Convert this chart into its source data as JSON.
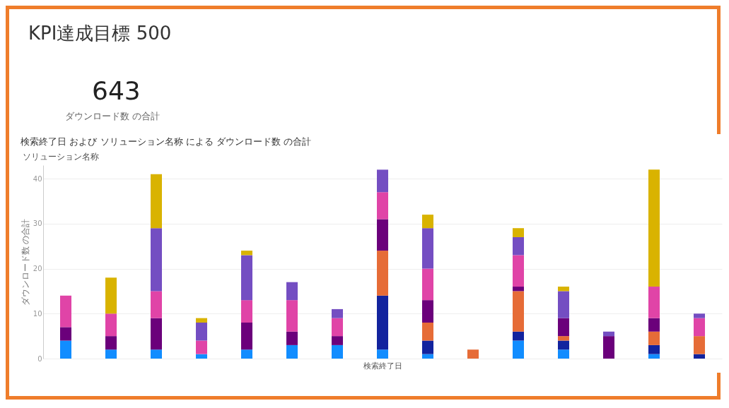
{
  "chart_data": [
    {
      "type": "other",
      "title": "KPI達成目標 500",
      "values": [
        643
      ],
      "data_labels": true,
      "annotations": [
        "ダウンロード数 の合計"
      ]
    },
    {
      "type": "bar",
      "title": "検索終了日 および ソリューション名称 による ダウンロード数 の合計",
      "annotations": [
        "ソリューション名称"
      ],
      "xlabel": "検索終了日",
      "ylabel": "ダウンロード数 の合計",
      "stacked": true,
      "grid": "y",
      "ylim": [
        0,
        43
      ],
      "yticks": [
        0,
        10,
        20,
        30,
        40
      ],
      "categories": [
        null,
        null,
        null,
        null,
        null,
        null,
        null,
        null,
        null,
        null,
        null,
        null,
        null,
        null,
        null
      ],
      "series": [
        {
          "color": "#118dff",
          "values": [
            4,
            2,
            2,
            1,
            2,
            3,
            3,
            2,
            1,
            0,
            4,
            2,
            0,
            1,
            0
          ]
        },
        {
          "color": "#12239e",
          "values": [
            0,
            0,
            0,
            0,
            0,
            0,
            0,
            12,
            3,
            0,
            2,
            2,
            0,
            2,
            1
          ]
        },
        {
          "color": "#e66c37",
          "values": [
            0,
            0,
            0,
            0,
            0,
            0,
            0,
            10,
            4,
            2,
            9,
            1,
            0,
            3,
            4
          ]
        },
        {
          "color": "#6b007b",
          "values": [
            3,
            3,
            7,
            0,
            6,
            3,
            2,
            7,
            5,
            0,
            1,
            4,
            5,
            3,
            0
          ]
        },
        {
          "color": "#e044a7",
          "values": [
            7,
            5,
            6,
            3,
            5,
            7,
            4,
            6,
            7,
            0,
            7,
            0,
            0,
            7,
            4
          ]
        },
        {
          "color": "#744ec2",
          "values": [
            0,
            0,
            14,
            4,
            10,
            4,
            2,
            5,
            9,
            0,
            4,
            6,
            1,
            0,
            1
          ]
        },
        {
          "color": "#d9b300",
          "values": [
            0,
            8,
            12,
            1,
            1,
            0,
            0,
            0,
            3,
            0,
            2,
            1,
            0,
            26,
            0
          ]
        }
      ]
    }
  ]
}
